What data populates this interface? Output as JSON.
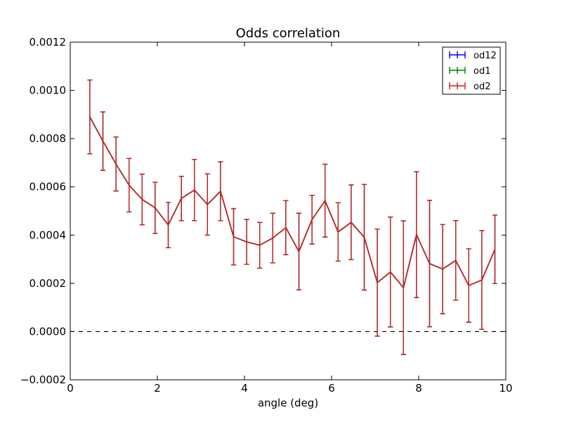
{
  "chart_data": {
    "type": "line",
    "title": "Odds correlation",
    "xlabel": "angle (deg)",
    "ylabel": "",
    "xlim": [
      0,
      10
    ],
    "ylim": [
      -0.0002,
      0.0012
    ],
    "x_ticks": [
      0,
      2,
      4,
      6,
      8,
      10
    ],
    "x_tick_labels": [
      "0",
      "2",
      "4",
      "6",
      "8",
      "10"
    ],
    "y_ticks": [
      -0.0002,
      0.0,
      0.0002,
      0.0004,
      0.0006,
      0.0008,
      0.001,
      0.0012
    ],
    "y_tick_labels": [
      "−0.0002",
      "0.0000",
      "0.0002",
      "0.0004",
      "0.0006",
      "0.0008",
      "0.0010",
      "0.0012"
    ],
    "grid": false,
    "legend_position": "top-right",
    "reference_line": {
      "y": 0.0,
      "style": "dashed",
      "color": "#000000"
    },
    "x": [
      0.45,
      0.75,
      1.05,
      1.35,
      1.65,
      1.95,
      2.25,
      2.55,
      2.85,
      3.15,
      3.45,
      3.75,
      4.05,
      4.35,
      4.65,
      4.95,
      5.25,
      5.55,
      5.85,
      6.15,
      6.45,
      6.75,
      7.05,
      7.35,
      7.65,
      7.95,
      8.25,
      8.55,
      8.85,
      9.15,
      9.45,
      9.75
    ],
    "series": [
      {
        "name": "od12",
        "color": "#0000ff",
        "y": [
          0.00089,
          0.00079,
          0.000695,
          0.000607,
          0.000548,
          0.000513,
          0.000442,
          0.000552,
          0.000587,
          0.000527,
          0.000582,
          0.000393,
          0.000372,
          0.000358,
          0.000388,
          0.000431,
          0.000332,
          0.000464,
          0.000543,
          0.000413,
          0.000453,
          0.000391,
          0.000203,
          0.000247,
          0.000182,
          0.000402,
          0.000282,
          0.000259,
          0.000295,
          0.000191,
          0.000214,
          0.000341
        ],
        "err": [
          0.000153,
          0.000121,
          0.000112,
          0.000111,
          0.000105,
          0.000106,
          9.4e-05,
          9.2e-05,
          0.000127,
          0.000127,
          0.000122,
          0.000117,
          9.3e-05,
          9.5e-05,
          0.000103,
          0.000112,
          0.000159,
          0.000101,
          0.000151,
          0.000121,
          0.000155,
          0.000219,
          0.000222,
          0.000228,
          0.000277,
          0.000261,
          0.000262,
          0.000185,
          0.000165,
          0.000152,
          0.000205,
          0.000142
        ]
      },
      {
        "name": "od1",
        "color": "#008000",
        "y": [
          0.00089,
          0.00079,
          0.000695,
          0.000607,
          0.000548,
          0.000513,
          0.000442,
          0.000552,
          0.000587,
          0.000527,
          0.000582,
          0.000393,
          0.000372,
          0.000358,
          0.000388,
          0.000431,
          0.000332,
          0.000464,
          0.000543,
          0.000413,
          0.000453,
          0.000391,
          0.000203,
          0.000247,
          0.000182,
          0.000402,
          0.000282,
          0.000259,
          0.000295,
          0.000191,
          0.000214,
          0.000341
        ],
        "err": [
          0.000153,
          0.000121,
          0.000112,
          0.000111,
          0.000105,
          0.000106,
          9.4e-05,
          9.2e-05,
          0.000127,
          0.000127,
          0.000122,
          0.000117,
          9.3e-05,
          9.5e-05,
          0.000103,
          0.000112,
          0.000159,
          0.000101,
          0.000151,
          0.000121,
          0.000155,
          0.000219,
          0.000222,
          0.000228,
          0.000277,
          0.000261,
          0.000262,
          0.000185,
          0.000165,
          0.000152,
          0.000205,
          0.000142
        ]
      },
      {
        "name": "od2",
        "color": "#cc1f1f",
        "y": [
          0.00089,
          0.00079,
          0.000695,
          0.000607,
          0.000548,
          0.000513,
          0.000442,
          0.000552,
          0.000587,
          0.000527,
          0.000582,
          0.000393,
          0.000372,
          0.000358,
          0.000388,
          0.000431,
          0.000332,
          0.000464,
          0.000543,
          0.000413,
          0.000453,
          0.000391,
          0.000203,
          0.000247,
          0.000182,
          0.000402,
          0.000282,
          0.000259,
          0.000295,
          0.000191,
          0.000214,
          0.000341
        ],
        "err": [
          0.000153,
          0.000121,
          0.000112,
          0.000111,
          0.000105,
          0.000106,
          9.4e-05,
          9.2e-05,
          0.000127,
          0.000127,
          0.000122,
          0.000117,
          9.3e-05,
          9.5e-05,
          0.000103,
          0.000112,
          0.000159,
          0.000101,
          0.000151,
          0.000121,
          0.000155,
          0.000219,
          0.000222,
          0.000228,
          0.000277,
          0.000261,
          0.000262,
          0.000185,
          0.000165,
          0.000152,
          0.000205,
          0.000142
        ]
      }
    ]
  }
}
